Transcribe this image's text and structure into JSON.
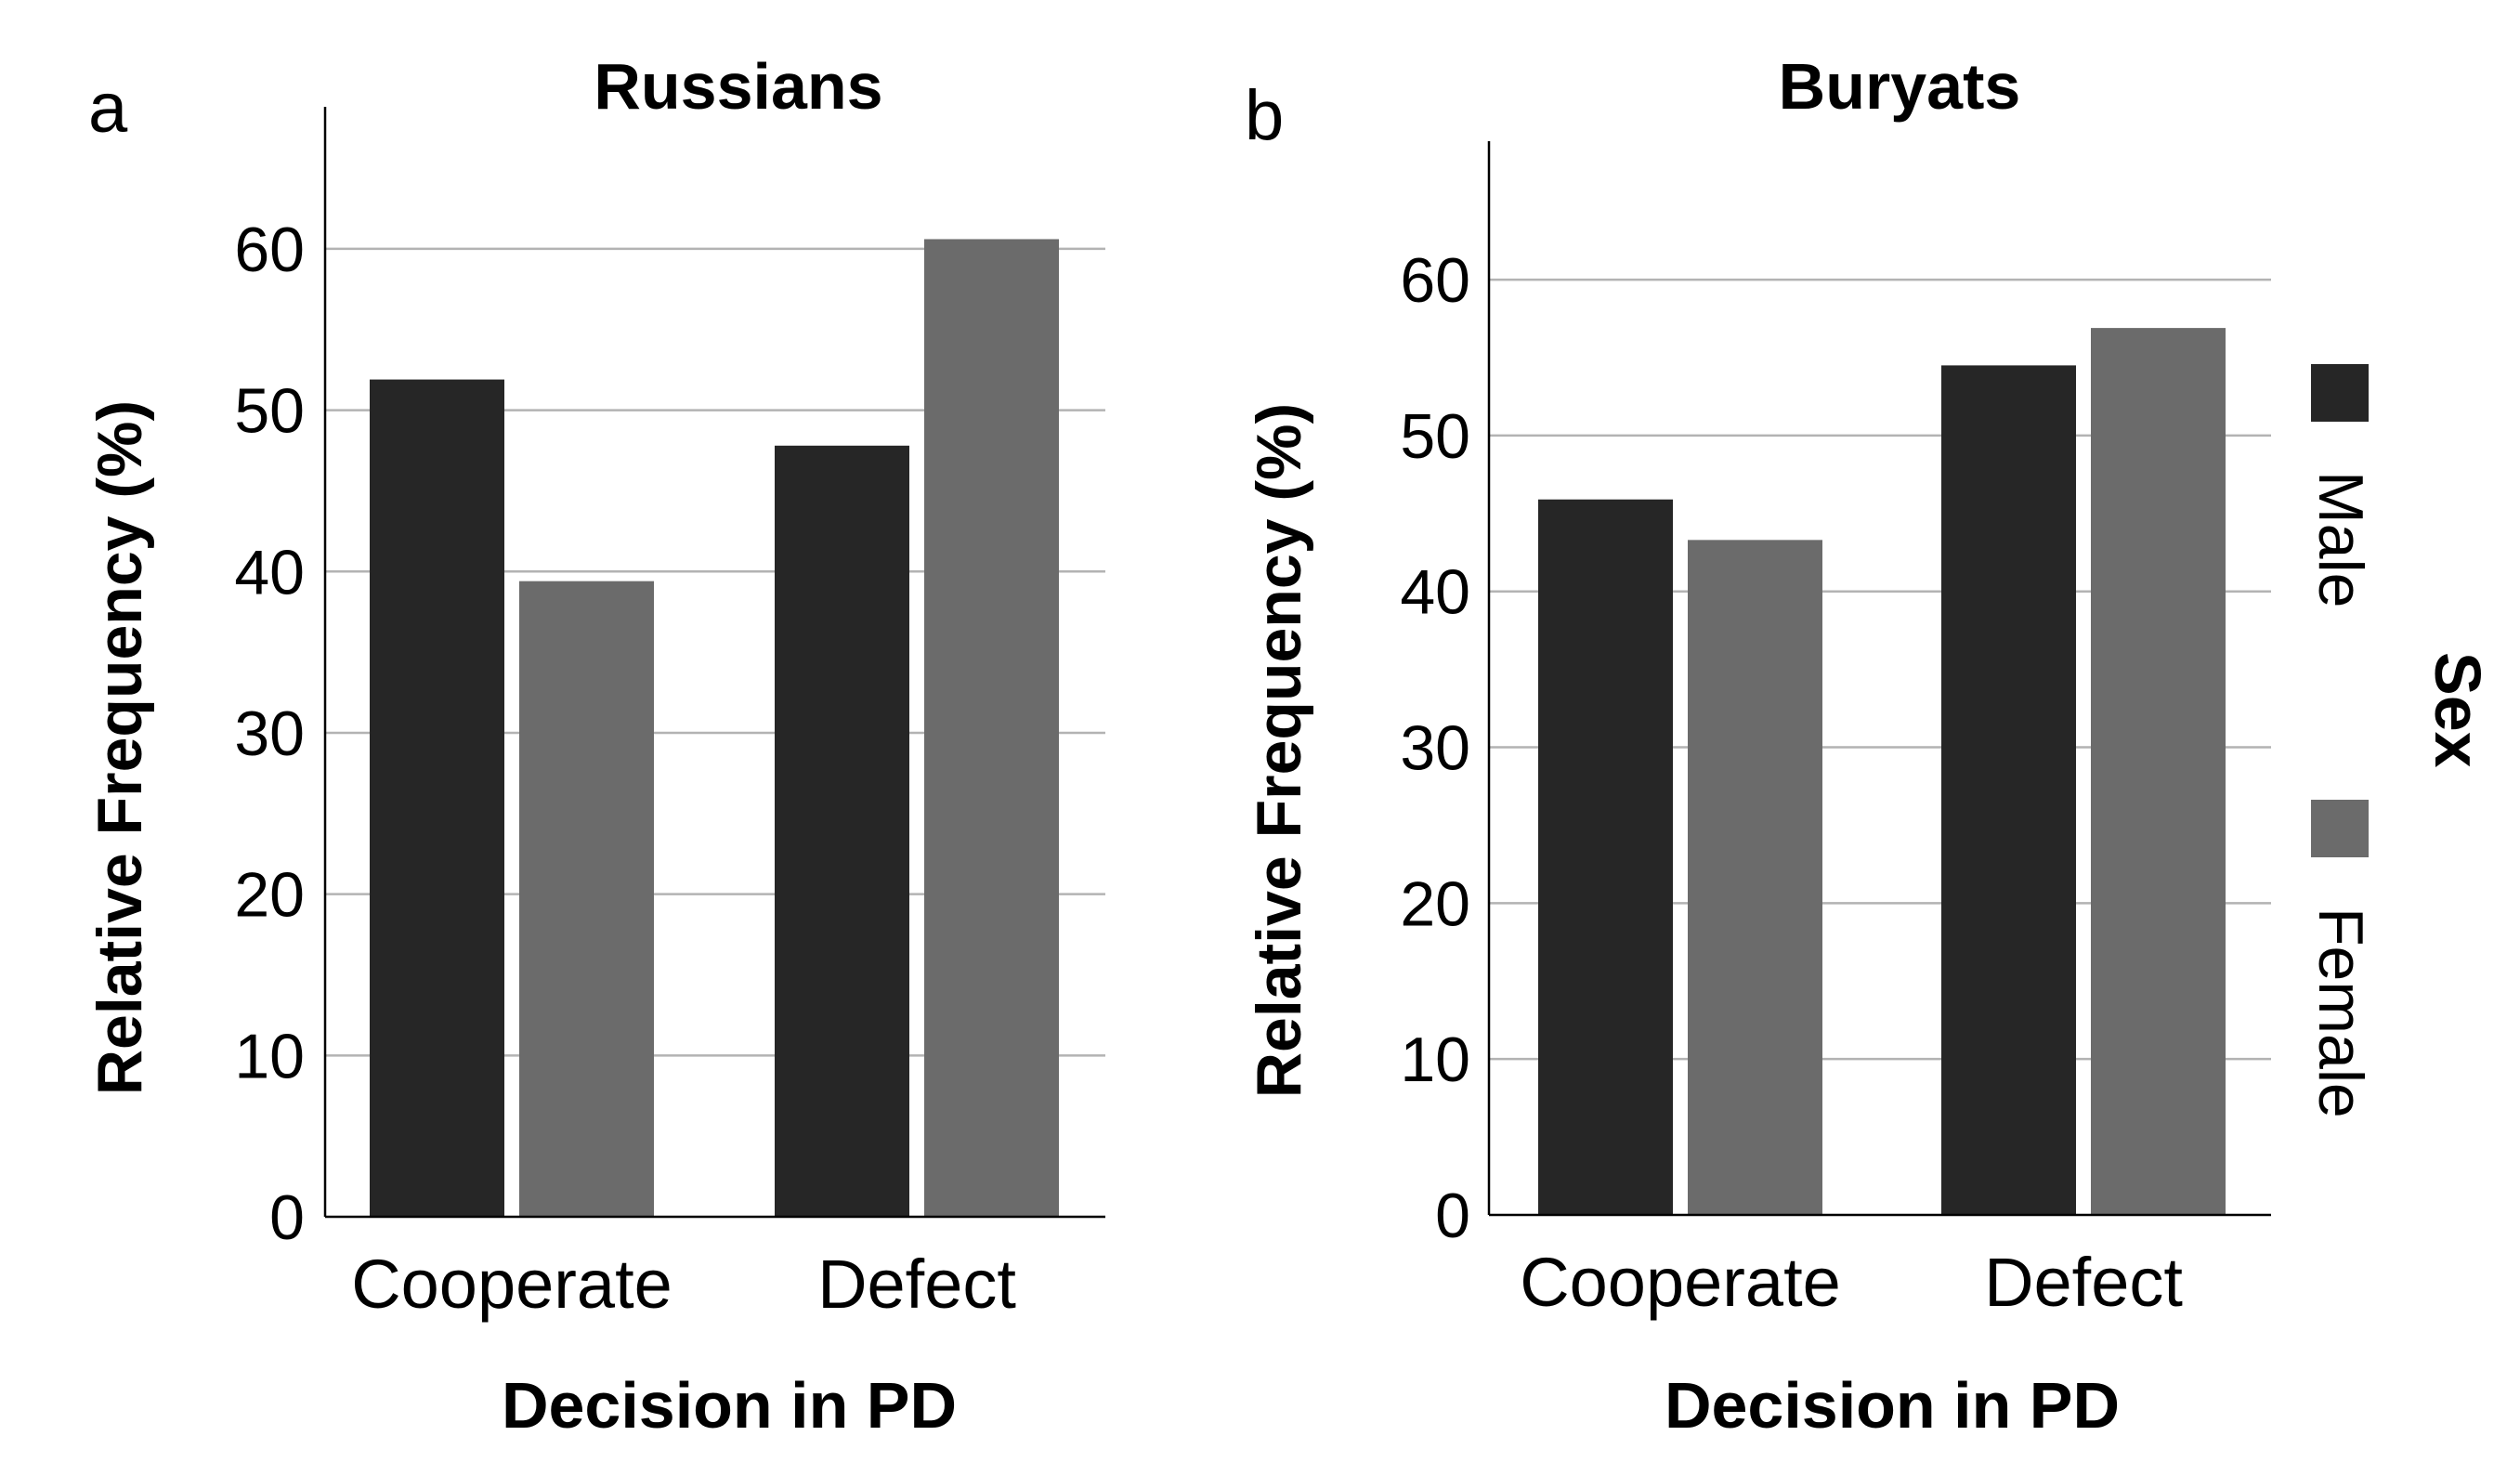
{
  "colors": {
    "male": "#262626",
    "female": "#6b6b6b",
    "grid": "#b3b3b3",
    "axis": "#000000"
  },
  "legend": {
    "title": "Sex",
    "items": [
      "Male",
      "Female"
    ]
  },
  "chart_data": [
    {
      "panel_label": "a",
      "type": "bar",
      "title": "Russians",
      "xlabel": "Decision in PD",
      "ylabel": "Relative Frequency (%)",
      "categories": [
        "Cooperate",
        "Defect"
      ],
      "series": [
        {
          "name": "Male",
          "values": [
            51.9,
            47.8
          ]
        },
        {
          "name": "Female",
          "values": [
            39.4,
            60.6
          ]
        }
      ],
      "ylim": [
        0,
        66.5
      ],
      "yticks": [
        0,
        10,
        20,
        30,
        40,
        50,
        60
      ],
      "grid": true
    },
    {
      "panel_label": "b",
      "type": "bar",
      "title": "Buryats",
      "xlabel": "Decision in PD",
      "ylabel": "Relative Frequency (%)",
      "categories": [
        "Cooperate",
        "Defect"
      ],
      "series": [
        {
          "name": "Male",
          "values": [
            45.9,
            54.5
          ]
        },
        {
          "name": "Female",
          "values": [
            43.3,
            56.9
          ]
        }
      ],
      "ylim": [
        0,
        66.5
      ],
      "yticks": [
        0,
        10,
        20,
        30,
        40,
        50,
        60
      ],
      "grid": true
    }
  ]
}
